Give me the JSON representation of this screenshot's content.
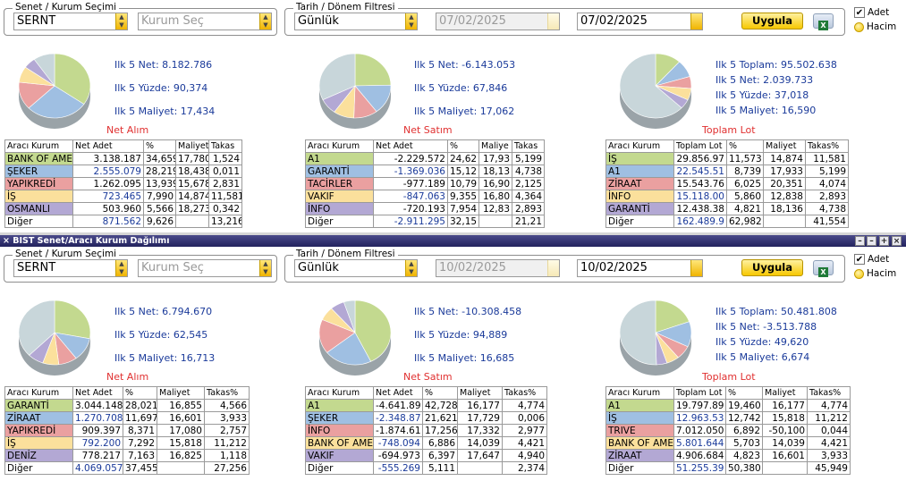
{
  "colors": {
    "green": "#c3d98f",
    "blue": "#9fbfe2",
    "red": "#eaa0a0",
    "yellow": "#fbe09c",
    "purple": "#b3a8d4",
    "grey": "#c8d6da",
    "accent": "#1a3a9a",
    "caption": "#e03030"
  },
  "icons": {
    "excel": "excel-icon",
    "dropdown": "dropdown-arrow-icon",
    "checkbox": "checkbox-icon",
    "radio": "radio-icon"
  },
  "window": {
    "title": "BIST Senet/Aracı Kurum Dağılımı",
    "controls": [
      "×",
      "–",
      "–",
      "+",
      "×"
    ]
  },
  "panels": [
    {
      "filter": {
        "legend": "Senet / Kurum Seçimi",
        "senet_value": "SERNT",
        "kurum_placeholder": "Kurum Seç"
      },
      "date": {
        "legend": "Tarih / Dönem Filtresi",
        "period_value": "Günlük",
        "start_date": "07/02/2025",
        "end_date": "07/02/2025",
        "apply_label": "Uygula"
      },
      "options": {
        "adet_label": "Adet",
        "hacim_label": "Hacim",
        "adet_checked": "✔"
      },
      "blocks": [
        {
          "caption": "Net Alım",
          "stats": [
            "Ilk 5 Net: 8.182.786",
            "Ilk 5 Yüzde: 90,374",
            "Ilk 5 Maliyet: 17,434"
          ],
          "pie": [
            34.659,
            28.219,
            13.939,
            7.99,
            5.566,
            9.626
          ],
          "headers": [
            "Aracı Kurum",
            "Net Adet",
            "%",
            "Maliyet",
            "Takas"
          ],
          "rows": [
            [
              "BANK OF AME",
              "3.138.187",
              "34,659",
              "17,780",
              "1,524"
            ],
            [
              "ŞEKER",
              "2.555.079",
              "28,219",
              "18,438",
              "0,011"
            ],
            [
              "YAPIKREDİ",
              "1.262.095",
              "13,939",
              "15,678",
              "2,831"
            ],
            [
              "İŞ",
              "723.465",
              "7,990",
              "14,874",
              "11,581"
            ],
            [
              "OSMANLI",
              "503.960",
              "5,566",
              "18,273",
              "0,342"
            ],
            [
              "Diğer",
              "871.562",
              "9,626",
              "",
              "13,216"
            ]
          ]
        },
        {
          "caption": "Net Satım",
          "stats": [
            "Ilk 5 Net: -6.143.053",
            "Ilk 5 Yüzde: 67,846",
            "Ilk 5 Maliyet: 17,062"
          ],
          "pie": [
            24.62,
            15.12,
            10.79,
            9.355,
            7.954,
            32.15
          ],
          "headers": [
            "Aracı Kurum",
            "Net Adet",
            "%",
            "Maliye",
            "Takas"
          ],
          "rows": [
            [
              "A1",
              "-2.229.572",
              "24,62",
              "17,93",
              "5,199"
            ],
            [
              "GARANTİ",
              "-1.369.036",
              "15,12",
              "18,13",
              "4,738"
            ],
            [
              "TACİRLER",
              "-977.189",
              "10,79",
              "16,90",
              "2,125"
            ],
            [
              "VAKIF",
              "-847.063",
              "9,355",
              "16,80",
              "4,364"
            ],
            [
              "İNFO",
              "-720.193",
              "7,954",
              "12,83",
              "2,893"
            ],
            [
              "Diğer",
              "-2.911.295",
              "32,15",
              "",
              "21,21"
            ]
          ]
        },
        {
          "caption": "Toplam Lot",
          "stats": [
            "Ilk 5 Toplam: 95.502.638",
            "Ilk 5 Net: 2.039.733",
            "Ilk 5 Yüzde: 37,018",
            "Ilk 5 Maliyet: 16,590"
          ],
          "pie": [
            11.573,
            8.739,
            6.025,
            5.86,
            4.821,
            62.982
          ],
          "headers": [
            "Aracı Kurum",
            "Toplam Lot",
            "%",
            "Maliyet",
            "Takas%"
          ],
          "rows": [
            [
              "İŞ",
              "29.856.97",
              "11,573",
              "14,874",
              "11,581"
            ],
            [
              "A1",
              "22.545.51",
              "8,739",
              "17,933",
              "5,199"
            ],
            [
              "ZİRAAT",
              "15.543.76",
              "6,025",
              "20,351",
              "4,074"
            ],
            [
              "İNFO",
              "15.118.00",
              "5,860",
              "12,838",
              "2,893"
            ],
            [
              "GARANTİ",
              "12.438.38",
              "4,821",
              "18,136",
              "4,738"
            ],
            [
              "Diğer",
              "162.489.9",
              "62,982",
              "",
              "41,554"
            ]
          ]
        }
      ]
    },
    {
      "filter": {
        "legend": "Senet / Kurum Seçimi",
        "senet_value": "SERNT",
        "kurum_placeholder": "Kurum Seç"
      },
      "date": {
        "legend": "Tarih / Dönem Filtresi",
        "period_value": "Günlük",
        "start_date": "10/02/2025",
        "end_date": "10/02/2025",
        "apply_label": "Uygula"
      },
      "options": {
        "adet_label": "Adet",
        "hacim_label": "Hacim",
        "adet_checked": "✔"
      },
      "blocks": [
        {
          "caption": "Net Alım",
          "stats": [
            "Ilk 5 Net: 6.794.670",
            "Ilk 5 Yüzde: 62,545",
            "Ilk 5 Maliyet: 16,713"
          ],
          "pie": [
            28.021,
            11.697,
            8.371,
            7.292,
            7.163,
            37.455
          ],
          "headers": [
            "Aracı Kurum",
            "Net Adet",
            "%",
            "Maliyet",
            "Takas%"
          ],
          "rows": [
            [
              "GARANTİ",
              "3.044.148",
              "28,021",
              "16,855",
              "4,566"
            ],
            [
              "ZİRAAT",
              "1.270.708",
              "11,697",
              "16,601",
              "3,933"
            ],
            [
              "YAPIKREDİ",
              "909.397",
              "8,371",
              "17,080",
              "2,757"
            ],
            [
              "İŞ",
              "792.200",
              "7,292",
              "15,818",
              "11,212"
            ],
            [
              "DENİZ",
              "778.217",
              "7,163",
              "16,825",
              "1,118"
            ],
            [
              "Diğer",
              "4.069.057",
              "37,455",
              "",
              "27,256"
            ]
          ]
        },
        {
          "caption": "Net Satım",
          "stats": [
            "Ilk 5 Net: -10.308.458",
            "Ilk 5 Yüzde: 94,889",
            "Ilk 5 Maliyet: 16,685"
          ],
          "pie": [
            42.728,
            21.621,
            17.256,
            6.886,
            6.397,
            5.111
          ],
          "headers": [
            "Aracı Kurum",
            "Net Adet",
            "%",
            "Maliyet",
            "Takas%"
          ],
          "rows": [
            [
              "A1",
              "-4.641.89",
              "42,728",
              "16,177",
              "4,774"
            ],
            [
              "ŞEKER",
              "-2.348.87",
              "21,621",
              "17,729",
              "0,006"
            ],
            [
              "İNFO",
              "-1.874.61",
              "17,256",
              "17,332",
              "2,977"
            ],
            [
              "BANK OF AME",
              "-748.094",
              "6,886",
              "14,039",
              "4,421"
            ],
            [
              "VAKIF",
              "-694.973",
              "6,397",
              "17,647",
              "4,940"
            ],
            [
              "Diğer",
              "-555.269",
              "5,111",
              "",
              "2,374"
            ]
          ]
        },
        {
          "caption": "Toplam Lot",
          "stats": [
            "Ilk 5 Toplam: 50.481.808",
            "Ilk 5 Net: -3.513.788",
            "Ilk 5 Yüzde: 49,620",
            "Ilk 5 Maliyet: 6,674"
          ],
          "pie": [
            19.46,
            12.742,
            6.892,
            5.703,
            4.823,
            50.38
          ],
          "headers": [
            "Aracı Kurum",
            "Toplam Lot",
            "%",
            "Maliyet",
            "Takas%"
          ],
          "rows": [
            [
              "A1",
              "19.797.89",
              "19,460",
              "16,177",
              "4,774"
            ],
            [
              "İŞ",
              "12.963.53",
              "12,742",
              "15,818",
              "11,212"
            ],
            [
              "TRIVE",
              "7.012.050",
              "6,892",
              "-50,100",
              "0,044"
            ],
            [
              "BANK OF AME",
              "5.801.644",
              "5,703",
              "14,039",
              "4,421"
            ],
            [
              "ZİRAAT",
              "4.906.684",
              "4,823",
              "16,601",
              "3,933"
            ],
            [
              "Diğer",
              "51.255.39",
              "50,380",
              "",
              "45,949"
            ]
          ]
        }
      ]
    }
  ]
}
